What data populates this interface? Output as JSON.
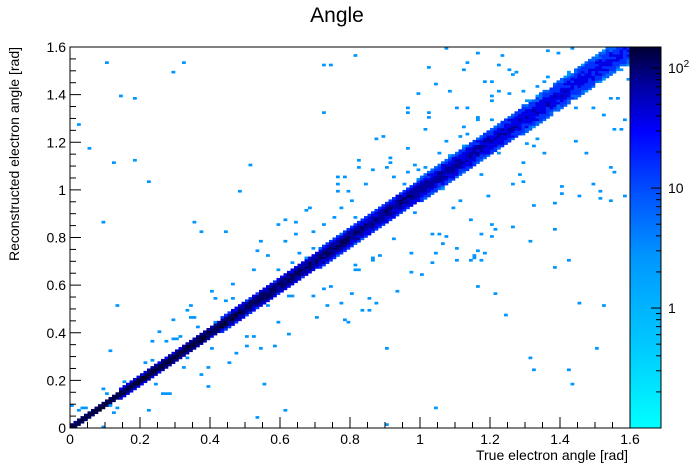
{
  "chart_data": {
    "type": "heatmap",
    "title": "Angle",
    "xlabel": "True electron angle [rad]",
    "ylabel": "Reconstructed electron angle [rad]",
    "xlim": [
      0,
      1.6
    ],
    "ylim": [
      0,
      1.6
    ],
    "bins": {
      "nx": 160,
      "ny": 160
    },
    "x_ticks": [
      "0",
      "0.2",
      "0.4",
      "0.6",
      "0.8",
      "1",
      "1.2",
      "1.4",
      "1.6"
    ],
    "y_ticks": [
      "0",
      "0.2",
      "0.4",
      "0.6",
      "0.8",
      "1",
      "1.2",
      "1.4",
      "1.6"
    ],
    "z_scale": "log",
    "zlim": [
      0.1,
      150
    ],
    "z_ticks": [
      {
        "value": 1,
        "label": "1"
      },
      {
        "value": 10,
        "label": "10"
      },
      {
        "value": 100,
        "label": "10^2"
      }
    ],
    "palette": [
      "#00ffff",
      "#00c8ff",
      "#0096ff",
      "#0064ff",
      "#0032ff",
      "#0000e6",
      "#0000a0",
      "#000060",
      "#000033"
    ],
    "distribution": "counts concentrated along the diagonal y = x; peak about 150 per bin near (0.05-0.2, 0.05-0.2); core falls to about 10 per bin near 1.2 rad; scattered single-count bins off the diagonal up to 1.6 rad"
  }
}
